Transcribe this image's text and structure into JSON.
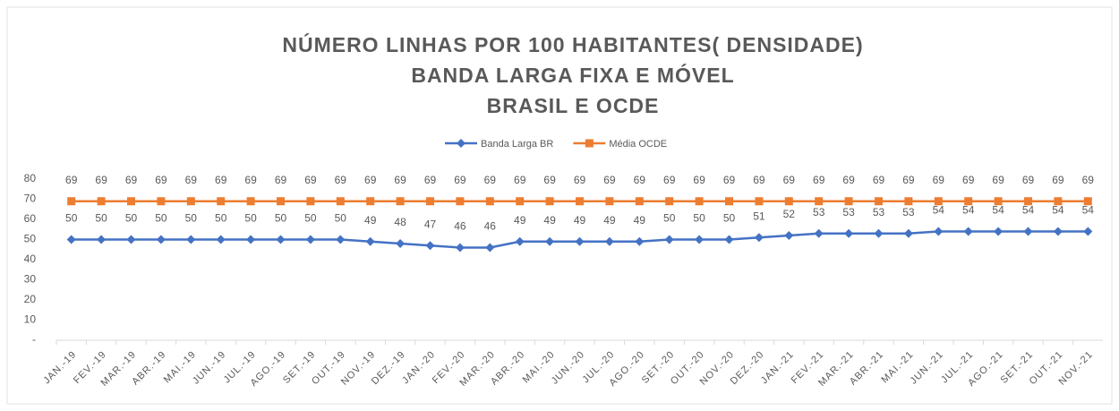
{
  "chart_data": {
    "type": "line",
    "title": [
      "NÚMERO LINHAS POR 100 HABITANTES( DENSIDADE)",
      "BANDA LARGA FIXA E MÓVEL",
      "BRASIL E OCDE"
    ],
    "categories": [
      "JAN.-19",
      "FEV.-19",
      "MAR.-19",
      "ABR.-19",
      "MAI.-19",
      "JUN.-19",
      "JUL.-19",
      "AGO.-19",
      "SET.-19",
      "OUT.-19",
      "NOV.-19",
      "DEZ.-19",
      "JAN.-20",
      "FEV.-20",
      "MAR.-20",
      "ABR.-20",
      "MAI.-20",
      "JUN.-20",
      "JUL.-20",
      "AGO.-20",
      "SET.-20",
      "OUT.-20",
      "NOV.-20",
      "DEZ.-20",
      "JAN.-21",
      "FEV.-21",
      "MAR.-21",
      "ABR.-21",
      "MAI.-21",
      "JUN.-21",
      "JUL.-21",
      "AGO.-21",
      "SET.-21",
      "OUT.-21",
      "NOV.-21"
    ],
    "series": [
      {
        "name": "Banda Larga BR",
        "color": "#4472c4",
        "marker": "diamond",
        "values": [
          50,
          50,
          50,
          50,
          50,
          50,
          50,
          50,
          50,
          50,
          49,
          48,
          47,
          46,
          46,
          49,
          49,
          49,
          49,
          49,
          50,
          50,
          50,
          51,
          52,
          53,
          53,
          53,
          53,
          54,
          54,
          54,
          54,
          54,
          54
        ]
      },
      {
        "name": "Média OCDE",
        "color": "#ed7d31",
        "marker": "square",
        "values": [
          69,
          69,
          69,
          69,
          69,
          69,
          69,
          69,
          69,
          69,
          69,
          69,
          69,
          69,
          69,
          69,
          69,
          69,
          69,
          69,
          69,
          69,
          69,
          69,
          69,
          69,
          69,
          69,
          69,
          69,
          69,
          69,
          69,
          69,
          69
        ]
      }
    ],
    "ylim": [
      0,
      80
    ],
    "yticks": [
      {
        "value": 0,
        "label": "-"
      },
      10,
      20,
      30,
      40,
      50,
      60,
      70,
      80
    ],
    "legend": "top"
  }
}
